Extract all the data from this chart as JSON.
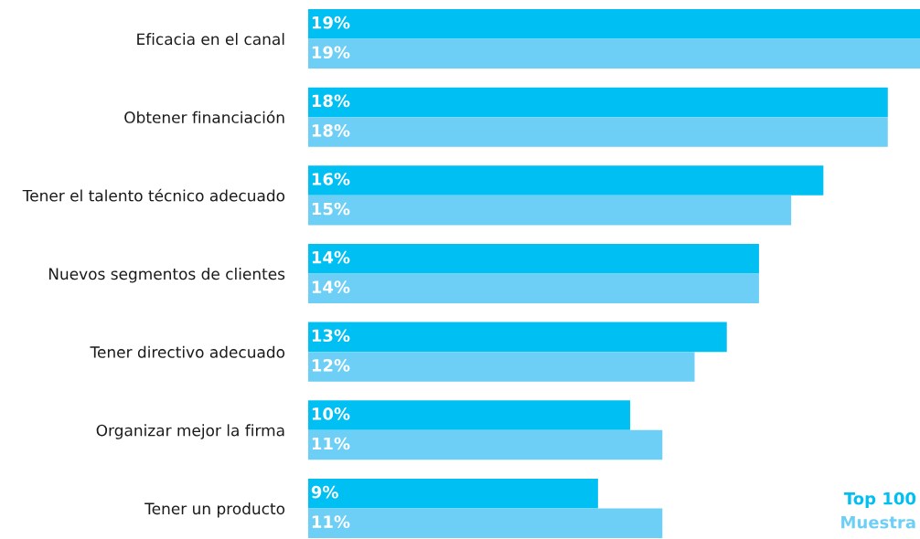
{
  "chart_data": {
    "type": "bar",
    "orientation": "horizontal",
    "categories": [
      "Eficacia en el canal",
      "Obtener financiación",
      "Tener el talento técnico adecuado",
      "Nuevos segmentos de clientes",
      "Tener directivo adecuado",
      "Organizar mejor la firma",
      "Tener un producto"
    ],
    "series": [
      {
        "name": "Top 100",
        "color": "#00bff3",
        "values": [
          19,
          18,
          16,
          14,
          13,
          10,
          9
        ],
        "value_labels": [
          "19%",
          "18%",
          "16%",
          "14%",
          "13%",
          "10%",
          "9%"
        ]
      },
      {
        "name": "Muestra",
        "color": "#6dcff6",
        "values": [
          19,
          18,
          15,
          14,
          12,
          11,
          11
        ],
        "value_labels": [
          "19%",
          "18%",
          "15%",
          "14%",
          "12%",
          "11%",
          "11%"
        ]
      }
    ],
    "xlim": [
      0,
      19
    ],
    "tick_labels": "y",
    "grid": false,
    "legend": "bottom right"
  }
}
